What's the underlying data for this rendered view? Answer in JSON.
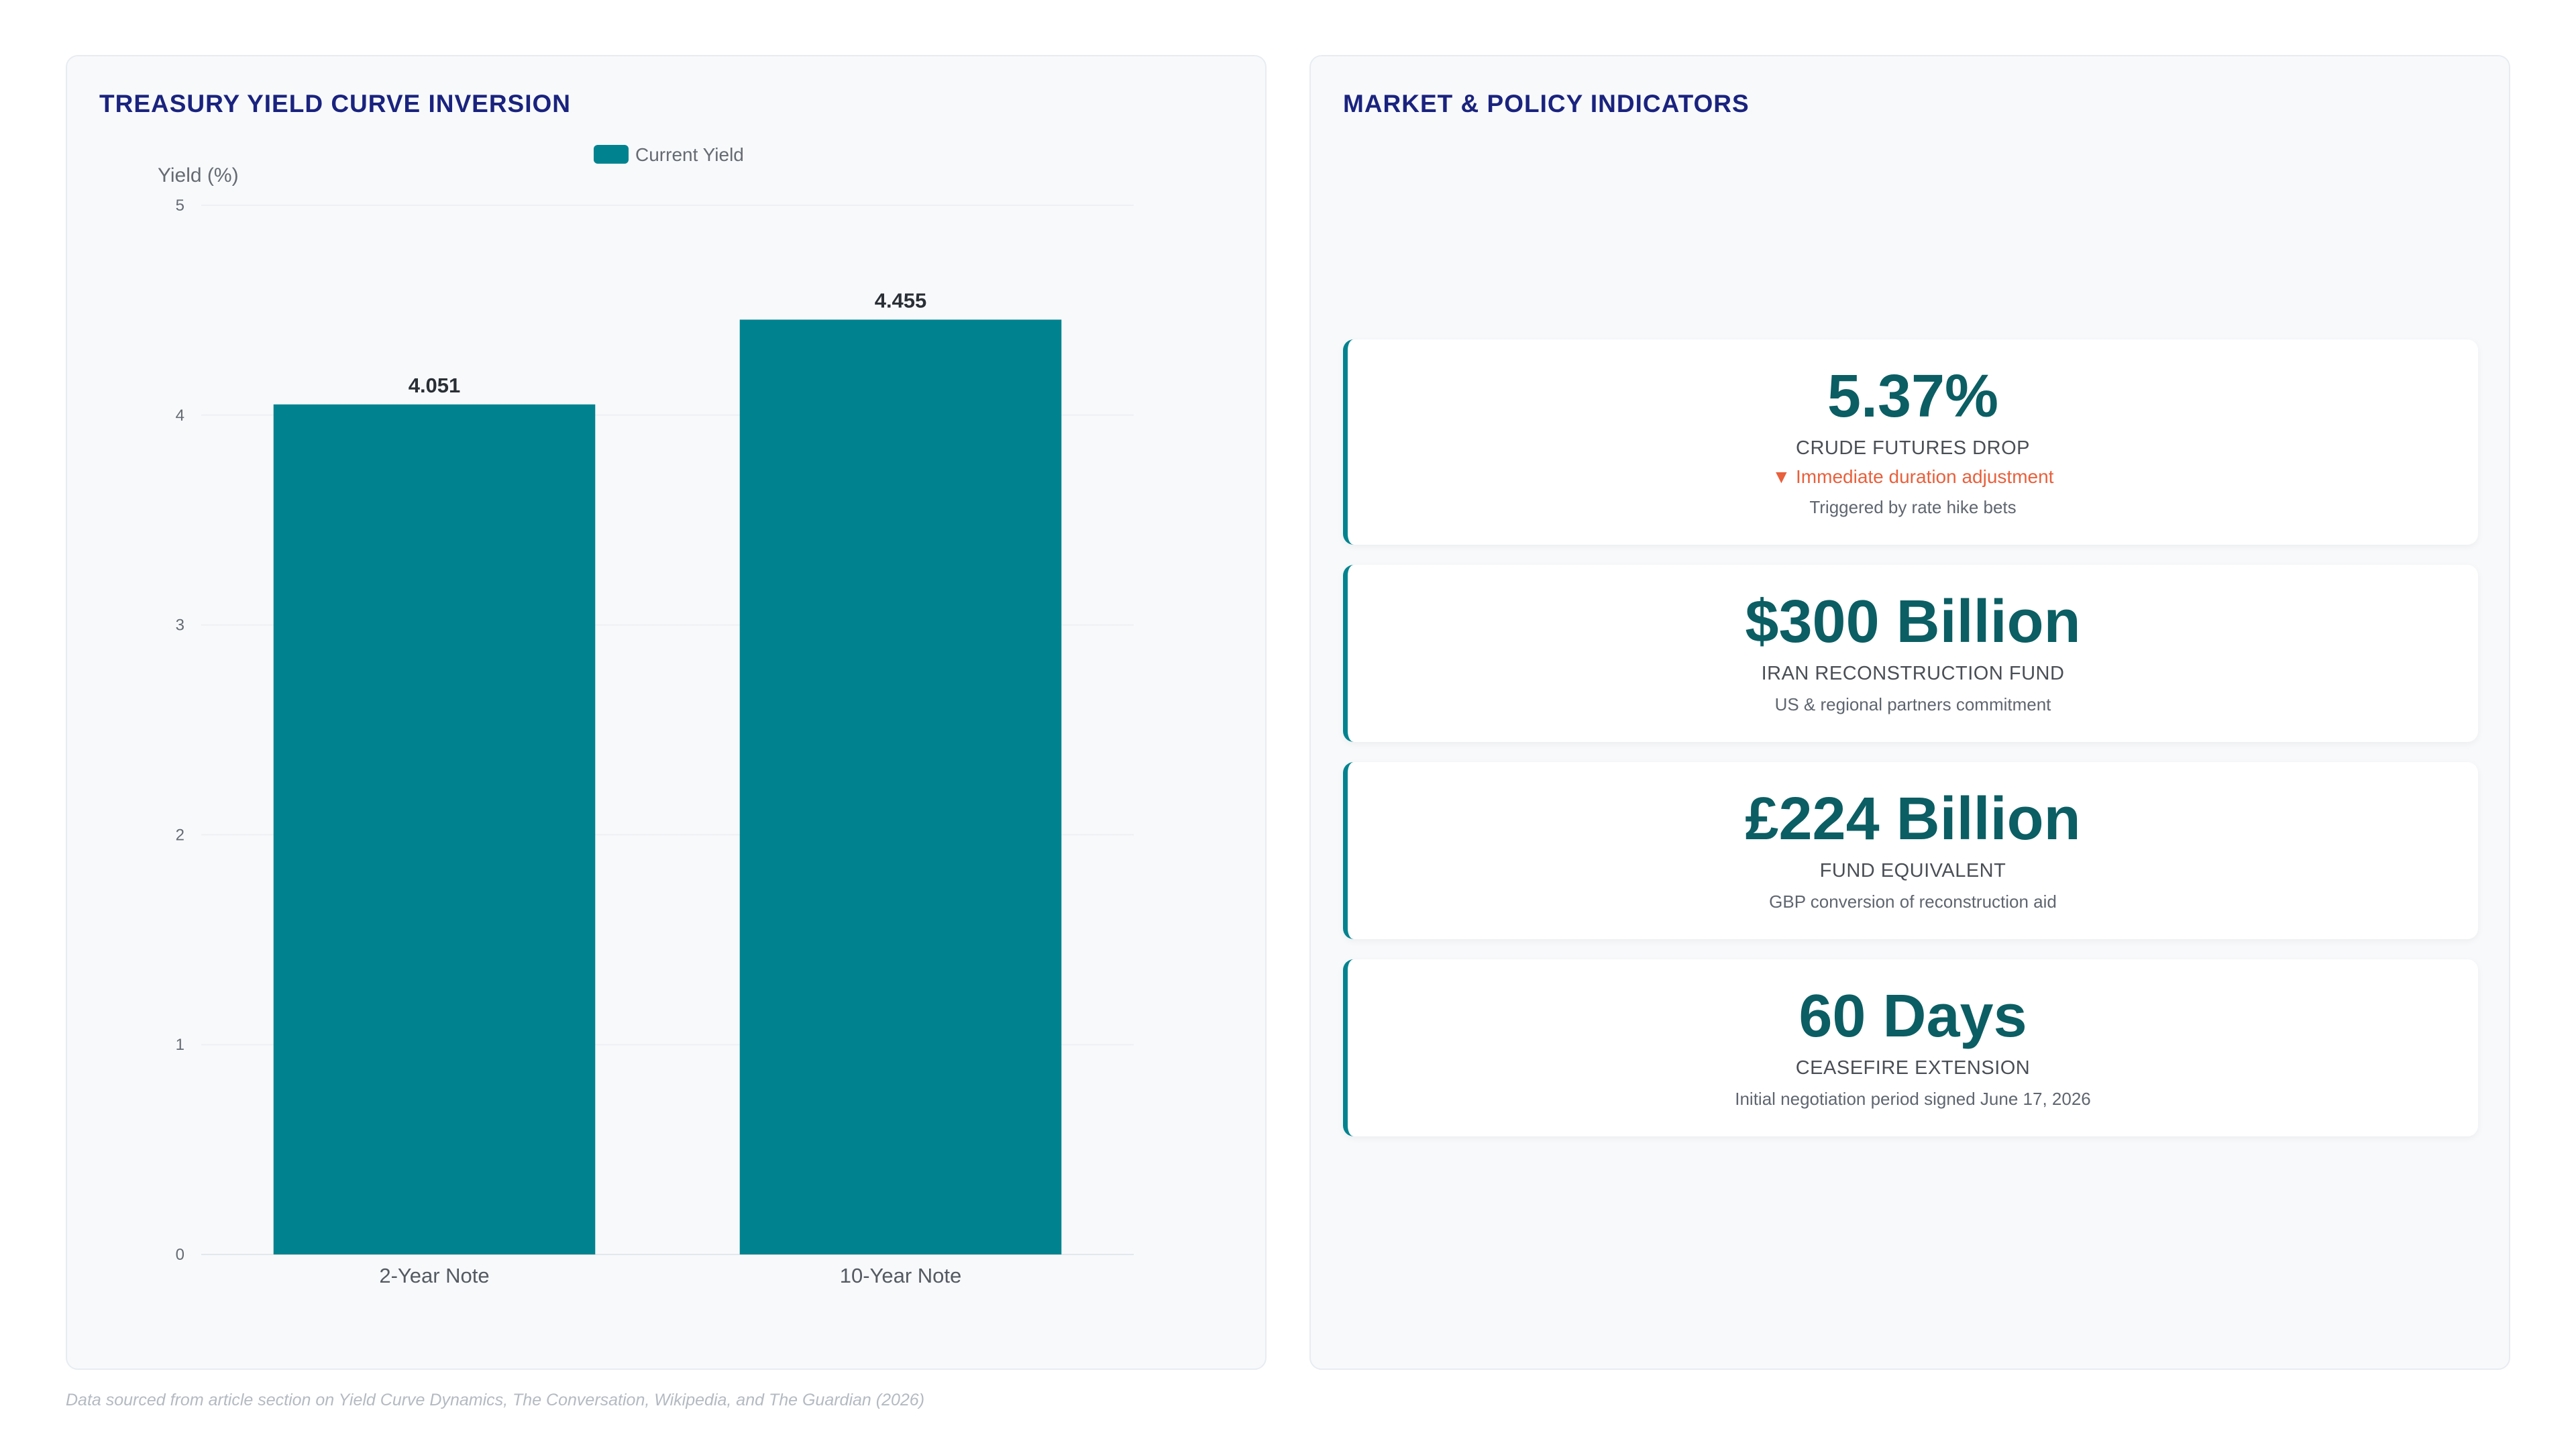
{
  "left_panel": {
    "title": "TREASURY YIELD CURVE INVERSION"
  },
  "right_panel": {
    "title": "MARKET & POLICY INDICATORS",
    "cards": [
      {
        "value": "5.37%",
        "label": "CRUDE FUTURES DROP",
        "trend": "▼ Immediate duration adjustment",
        "sub": "Triggered by rate hike bets"
      },
      {
        "value": "$300 Billion",
        "label": "IRAN RECONSTRUCTION FUND",
        "sub": "US & regional partners commitment"
      },
      {
        "value": "£224 Billion",
        "label": "FUND EQUIVALENT",
        "sub": "GBP conversion of reconstruction aid"
      },
      {
        "value": "60 Days",
        "label": "CEASEFIRE EXTENSION",
        "sub": "Initial negotiation period signed June 17, 2026"
      }
    ]
  },
  "footnote": "Data sourced from article section on Yield Curve Dynamics, The Conversation, Wikipedia, and The Guardian (2026)",
  "colors": {
    "bar": "#00838f",
    "title": "#1a237e",
    "metric_value": "#0b5e63",
    "trend_down": "#e8603c"
  },
  "chart_data": {
    "type": "bar",
    "title": "TREASURY YIELD CURVE INVERSION",
    "categories": [
      "2-Year Note",
      "10-Year Note"
    ],
    "series": [
      {
        "name": "Current Yield",
        "values": [
          4.051,
          4.455
        ]
      }
    ],
    "data_labels": [
      "4.051",
      "4.455"
    ],
    "xlabel": "",
    "ylabel": "Yield (%)",
    "ylim": [
      0,
      5
    ],
    "yticks": [
      0,
      1,
      2,
      3,
      4,
      5
    ],
    "grid": true,
    "legend": "top-center"
  }
}
